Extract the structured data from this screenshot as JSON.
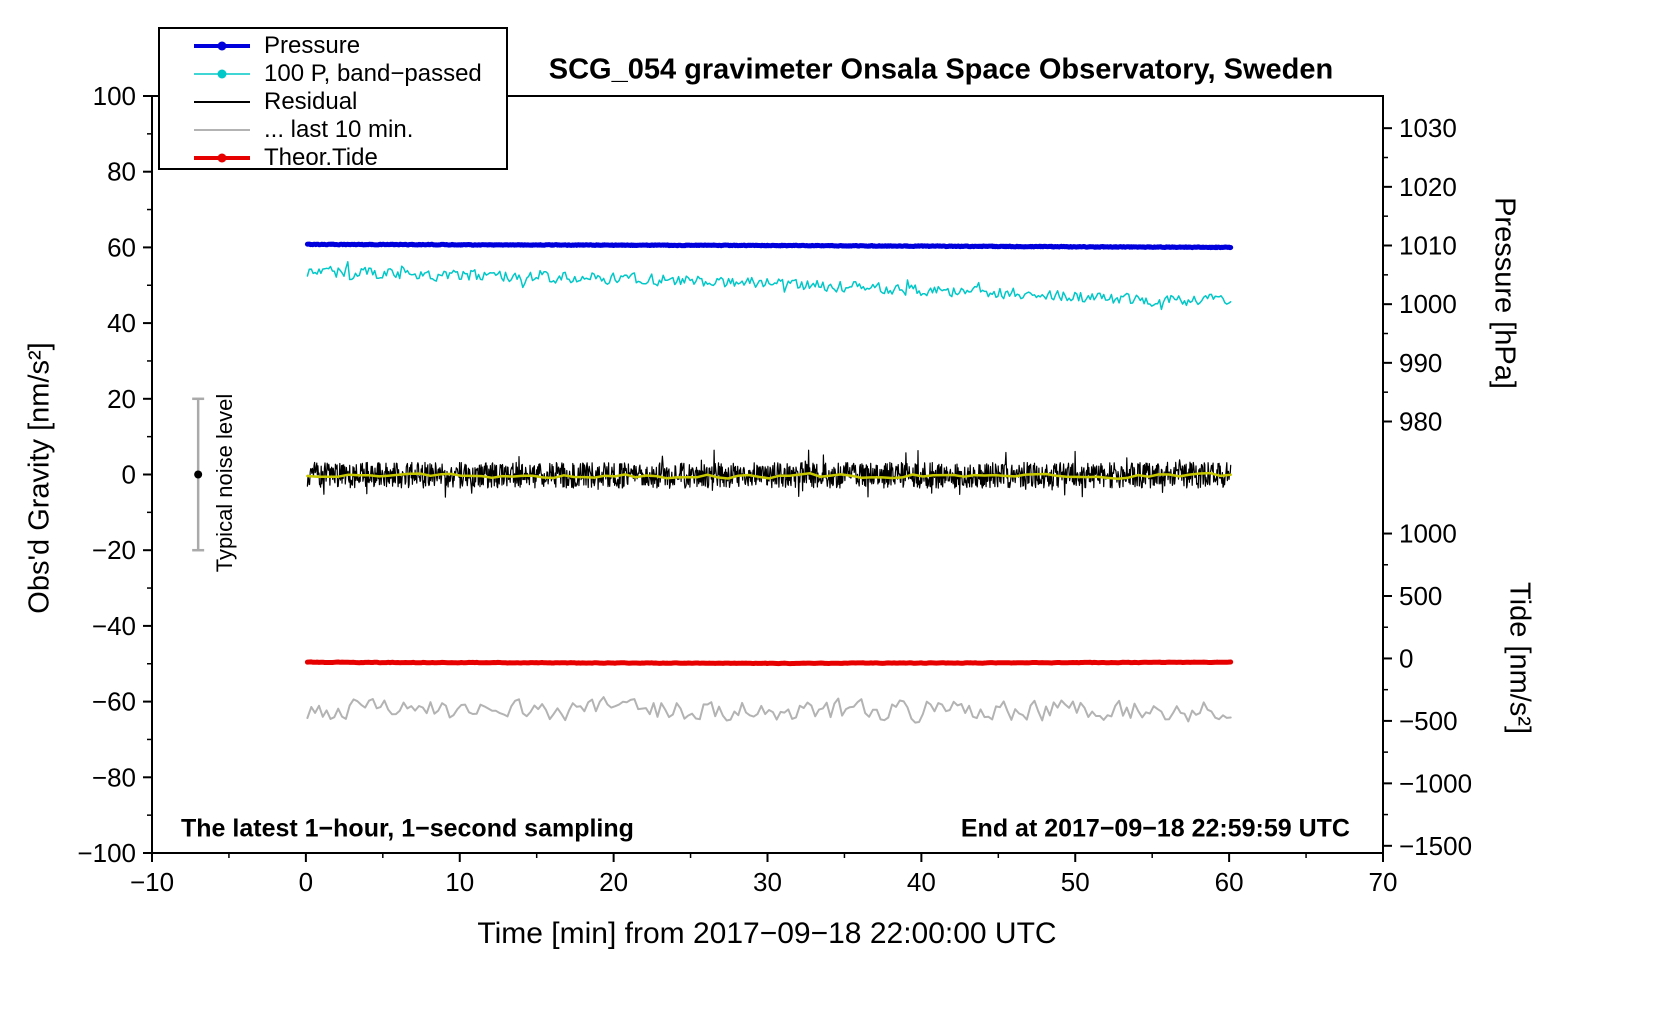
{
  "chart_data": {
    "type": "line",
    "title": "SCG_054 gravimeter Onsala Space Observatory, Sweden",
    "xlabel": "Time [min] from 2017−09−18 22:00:00 UTC",
    "ylabel_left": "Obs'd Gravity [nm/s²]",
    "ylabel_pressure": "Pressure [hPa]",
    "ylabel_tide": "Tide [nm/s²]",
    "xlim": [
      -10,
      70
    ],
    "ylim_left": [
      -100,
      100
    ],
    "xticks": [
      -10,
      0,
      10,
      20,
      30,
      40,
      50,
      60,
      70
    ],
    "yticks_left": [
      -100,
      -80,
      -60,
      -40,
      -20,
      0,
      20,
      40,
      60,
      80,
      100
    ],
    "pressure_axis": {
      "ticks": [
        980,
        990,
        1000,
        1010,
        1020,
        1030
      ],
      "minor_step_hpa": 5,
      "gravity_at_980": 14.0,
      "gravity_per_hpa": 1.55
    },
    "tide_axis": {
      "ticks": [
        -1500,
        -1000,
        -500,
        0,
        500,
        1000
      ],
      "minor_step": 250,
      "gravity_at_0": -48.6,
      "gravity_per_unit": 0.033
    },
    "grid": false,
    "legend_position": "top-left",
    "legend": [
      {
        "label": "Pressure",
        "color": "#0000dd",
        "line_width": 4,
        "dot": true
      },
      {
        "label": "100 P, band−passed",
        "color": "#00c8c8",
        "line_width": 1.5,
        "dot": true
      },
      {
        "label": "Residual",
        "color": "#000000",
        "line_width": 2,
        "dot": false
      },
      {
        "label": "... last 10 min.",
        "color": "#b3b3b3",
        "line_width": 2,
        "dot": false
      },
      {
        "label": "Theor.Tide",
        "color": "#e60000",
        "line_width": 4,
        "dot": true
      }
    ],
    "series": [
      {
        "id": "pressure",
        "name": "Pressure",
        "color": "#0000dd",
        "width": 5,
        "x_range": [
          0.1,
          60.1
        ],
        "points_per_min": 20,
        "noise": 0.12,
        "smooth": 0.3,
        "spiky": false,
        "anchors": [
          [
            0,
            60.8
          ],
          [
            30,
            60.5
          ],
          [
            60,
            60.0
          ]
        ]
      },
      {
        "id": "pressure-bandpassed",
        "name": "100 P, band−passed",
        "color": "#00c8c8",
        "width": 1.5,
        "x_range": [
          0.1,
          60.1
        ],
        "points_per_min": 8,
        "noise": 1.8,
        "smooth": 0.2,
        "spiky": true,
        "anchors": [
          [
            0,
            53.5
          ],
          [
            10,
            52.8
          ],
          [
            20,
            51.8
          ],
          [
            30,
            50.5
          ],
          [
            40,
            48.8
          ],
          [
            50,
            47.0
          ],
          [
            55,
            46.0
          ],
          [
            60,
            46.2
          ]
        ]
      },
      {
        "id": "residual",
        "name": "Residual",
        "color": "#000000",
        "width": 1.2,
        "x_range": [
          0.1,
          60.1
        ],
        "points_per_min": 28,
        "noise": 3.4,
        "smooth": 0.0,
        "spiky": true,
        "anchors": [
          [
            0,
            -0.2
          ],
          [
            60,
            -0.2
          ]
        ]
      },
      {
        "id": "residual-smoothed",
        "name": "Residual low-pass",
        "color": "#c8c800",
        "width": 2.5,
        "x_range": [
          0.1,
          60.1
        ],
        "points_per_min": 1.5,
        "noise": 1.0,
        "smooth": 0.45,
        "spiky": false,
        "anchors": [
          [
            0,
            -0.5
          ],
          [
            60,
            -0.3
          ]
        ]
      },
      {
        "id": "theor-tide",
        "name": "Theor.Tide",
        "color": "#e60000",
        "width": 5,
        "x_range": [
          0.1,
          60.1
        ],
        "points_per_min": 8,
        "noise": 0.1,
        "smooth": 0.4,
        "spiky": false,
        "anchors": [
          [
            0,
            -49.6
          ],
          [
            30,
            -49.9
          ],
          [
            60,
            -49.6
          ]
        ]
      },
      {
        "id": "last-10-min",
        "name": "... last 10 min.",
        "color": "#b3b3b3",
        "width": 2,
        "x_range": [
          0.1,
          60.1
        ],
        "points_per_min": 4,
        "noise": 4.0,
        "smooth": 0.35,
        "spiky": false,
        "anchors": [
          [
            0,
            -62.0
          ],
          [
            60,
            -62.4
          ]
        ]
      }
    ],
    "annotations": {
      "sampling_note": "The latest 1−hour, 1−second sampling",
      "end_time": "End at 2017−09−18 22:59:59 UTC",
      "noise_label": "Typical noise level",
      "noise_bar": {
        "x": -7,
        "center": 0,
        "half_range": 20,
        "bar_color": "#aaaaaa",
        "dot_color": "#000000"
      }
    }
  }
}
